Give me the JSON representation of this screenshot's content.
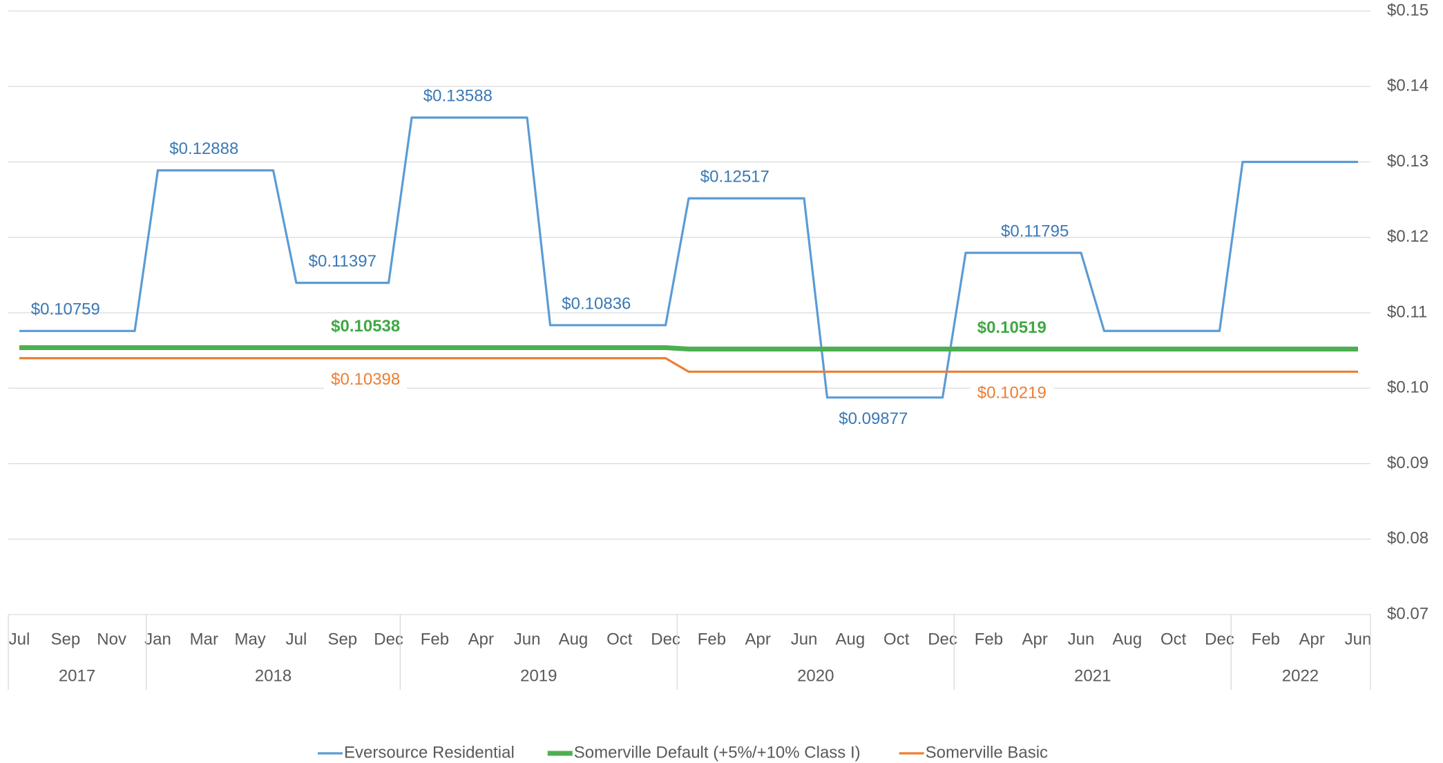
{
  "chart_data": {
    "type": "line",
    "categories": [
      "Jul",
      null,
      "Sep",
      null,
      "Nov",
      null,
      "Jan",
      null,
      "Mar",
      null,
      "May",
      null,
      "Jul",
      null,
      "Sep",
      null,
      "Dec",
      null,
      "Feb",
      null,
      "Apr",
      null,
      "Jun",
      null,
      "Aug",
      null,
      "Oct",
      null,
      "Dec",
      null,
      "Feb",
      null,
      "Apr",
      null,
      "Jun",
      null,
      "Aug",
      null,
      "Oct",
      null,
      "Dec",
      null,
      "Feb",
      null,
      "Apr",
      null,
      "Jun",
      null,
      "Aug",
      null,
      "Oct",
      null,
      "Dec",
      null,
      "Feb",
      null,
      "Apr",
      null,
      "Jun"
    ],
    "x_groups": [
      {
        "label": "2017",
        "from": 0,
        "to": 5
      },
      {
        "label": "2018",
        "from": 6,
        "to": 16
      },
      {
        "label": "2019",
        "from": 17,
        "to": 28
      },
      {
        "label": "2020",
        "from": 29,
        "to": 40
      },
      {
        "label": "2021",
        "from": 41,
        "to": 52
      },
      {
        "label": "2022",
        "from": 53,
        "to": 58
      }
    ],
    "series": [
      {
        "name": "Eversource Residential",
        "color": "#5b9bd5",
        "label_color": "#3a78b5",
        "values": [
          0.10759,
          0.10759,
          0.10759,
          0.10759,
          0.10759,
          0.10759,
          0.12888,
          0.12888,
          0.12888,
          0.12888,
          0.12888,
          0.12888,
          0.11397,
          0.11397,
          0.11397,
          0.11397,
          0.11397,
          0.13588,
          0.13588,
          0.13588,
          0.13588,
          0.13588,
          0.13588,
          0.10836,
          0.10836,
          0.10836,
          0.10836,
          0.10836,
          0.10836,
          0.12517,
          0.12517,
          0.12517,
          0.12517,
          0.12517,
          0.12517,
          0.09877,
          0.09877,
          0.09877,
          0.09877,
          0.09877,
          0.09877,
          0.11795,
          0.11795,
          0.11795,
          0.11795,
          0.11795,
          0.11795,
          0.1076,
          0.1076,
          0.1076,
          0.1076,
          0.1076,
          0.1076,
          0.13,
          0.13,
          0.13,
          0.13,
          0.13,
          0.13
        ],
        "value_labels": [
          null,
          null,
          "$0.10759",
          null,
          null,
          null,
          null,
          null,
          "$0.12888",
          null,
          null,
          null,
          null,
          null,
          "$0.11397",
          null,
          null,
          null,
          null,
          "$0.13588",
          null,
          null,
          null,
          null,
          null,
          "$0.10836",
          null,
          null,
          null,
          null,
          null,
          "$0.12517",
          null,
          null,
          null,
          null,
          null,
          "$0.09877",
          null,
          null,
          null,
          null,
          null,
          null,
          "$0.11795",
          null,
          null,
          null,
          null,
          null,
          null,
          null,
          null,
          null,
          null,
          null,
          null,
          null,
          null
        ]
      },
      {
        "name": "Somerville Default (+5%/+10% Class I)",
        "color": "#4caf50",
        "label_color": "#3fa843",
        "values": [
          0.10538,
          0.10538,
          0.10538,
          0.10538,
          0.10538,
          0.10538,
          0.10538,
          0.10538,
          0.10538,
          0.10538,
          0.10538,
          0.10538,
          0.10538,
          0.10538,
          0.10538,
          0.10538,
          0.10538,
          0.10538,
          0.10538,
          0.10538,
          0.10538,
          0.10538,
          0.10538,
          0.10538,
          0.10538,
          0.10538,
          0.10538,
          0.10538,
          0.10538,
          0.10519,
          0.10519,
          0.10519,
          0.10519,
          0.10519,
          0.10519,
          0.10519,
          0.10519,
          0.10519,
          0.10519,
          0.10519,
          0.10519,
          0.10519,
          0.10519,
          0.10519,
          0.10519,
          0.10519,
          0.10519,
          0.10519,
          0.10519,
          0.10519,
          0.10519,
          0.10519,
          0.10519,
          0.10519,
          0.10519,
          0.10519,
          0.10519,
          0.10519,
          0.10519
        ],
        "value_labels": [
          null,
          null,
          null,
          null,
          null,
          null,
          null,
          null,
          null,
          null,
          null,
          null,
          null,
          null,
          null,
          "$0.10538",
          null,
          null,
          null,
          null,
          null,
          null,
          null,
          null,
          null,
          null,
          null,
          null,
          null,
          null,
          null,
          null,
          null,
          null,
          null,
          null,
          null,
          null,
          null,
          null,
          null,
          null,
          null,
          "$0.10519",
          null,
          null,
          null,
          null,
          null,
          null,
          null,
          null,
          null,
          null,
          null,
          null,
          null,
          null,
          null
        ]
      },
      {
        "name": "Somerville Basic",
        "color": "#ed7d31",
        "label_color": "#ed7d31",
        "values": [
          0.10398,
          0.10398,
          0.10398,
          0.10398,
          0.10398,
          0.10398,
          0.10398,
          0.10398,
          0.10398,
          0.10398,
          0.10398,
          0.10398,
          0.10398,
          0.10398,
          0.10398,
          0.10398,
          0.10398,
          0.10398,
          0.10398,
          0.10398,
          0.10398,
          0.10398,
          0.10398,
          0.10398,
          0.10398,
          0.10398,
          0.10398,
          0.10398,
          0.10398,
          0.10219,
          0.10219,
          0.10219,
          0.10219,
          0.10219,
          0.10219,
          0.10219,
          0.10219,
          0.10219,
          0.10219,
          0.10219,
          0.10219,
          0.10219,
          0.10219,
          0.10219,
          0.10219,
          0.10219,
          0.10219,
          0.10219,
          0.10219,
          0.10219,
          0.10219,
          0.10219,
          0.10219,
          0.10219,
          0.10219,
          0.10219,
          0.10219,
          0.10219,
          0.10219
        ],
        "value_labels": [
          null,
          null,
          null,
          null,
          null,
          null,
          null,
          null,
          null,
          null,
          null,
          null,
          null,
          null,
          null,
          "$0.10398",
          null,
          null,
          null,
          null,
          null,
          null,
          null,
          null,
          null,
          null,
          null,
          null,
          null,
          null,
          null,
          null,
          null,
          null,
          null,
          null,
          null,
          null,
          null,
          null,
          null,
          null,
          null,
          "$0.10219",
          null,
          null,
          null,
          null,
          null,
          null,
          null,
          null,
          null,
          null,
          null,
          null,
          null,
          null,
          null
        ]
      }
    ],
    "ylim": [
      0.07,
      0.15
    ],
    "yticks": [
      {
        "value": 0.07,
        "label": "$0.07"
      },
      {
        "value": 0.08,
        "label": "$0.08"
      },
      {
        "value": 0.09,
        "label": "$0.09"
      },
      {
        "value": 0.1,
        "label": "$0.10"
      },
      {
        "value": 0.11,
        "label": "$0.11"
      },
      {
        "value": 0.12,
        "label": "$0.12"
      },
      {
        "value": 0.13,
        "label": "$0.13"
      },
      {
        "value": 0.14,
        "label": "$0.14"
      },
      {
        "value": 0.15,
        "label": "$0.15"
      }
    ],
    "y_axis_side": "right",
    "grid": true,
    "legend": "bottom"
  }
}
